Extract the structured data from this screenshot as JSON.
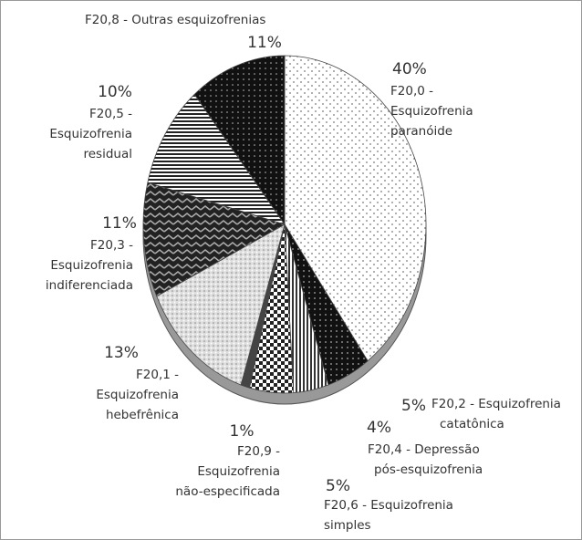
{
  "chart_data": {
    "type": "pie",
    "categories": [
      "F20,0 - Esquizofrenia paranóide",
      "F20,2 - Esquizofrenia catatônica",
      "F20,4 - Depressão pós-esquizofrenia",
      "F20,6 - Esquizofrenia simples",
      "F20,9 - Esquizofrenia não-especificada",
      "F20,1 - Esquizofrenia hebefrênica",
      "F20,3 - Esquizofrenia indiferenciada",
      "F20,5 - Esquizofrenia residual",
      "F20,8 - Outras esquizofrenias"
    ],
    "values": [
      40,
      5,
      4,
      5,
      1,
      13,
      11,
      10,
      11
    ],
    "value_labels": [
      "40%",
      "5%",
      "4%",
      "5%",
      "1%",
      "13%",
      "11%",
      "10%",
      "11%"
    ]
  }
}
